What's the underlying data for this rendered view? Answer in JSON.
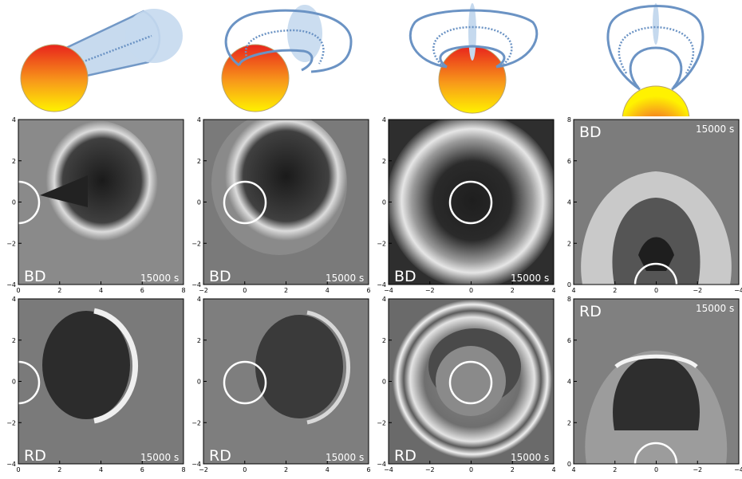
{
  "figure": {
    "rows": [
      {
        "label": "BD",
        "time": "15000 s"
      },
      {
        "label": "RD",
        "time": "15000 s"
      }
    ],
    "columns": [
      {
        "xticks": [
          "0",
          "2",
          "4",
          "6",
          "8"
        ],
        "yticks": [
          "−4",
          "−2",
          "0",
          "2",
          "4"
        ]
      },
      {
        "xticks": [
          "−2",
          "0",
          "2",
          "4",
          "6"
        ],
        "yticks": [
          "−4",
          "−2",
          "0",
          "2",
          "4"
        ]
      },
      {
        "xticks": [
          "−4",
          "−2",
          "0",
          "2",
          "4"
        ],
        "yticks": [
          "−4",
          "−2",
          "0",
          "2",
          "4"
        ]
      },
      {
        "xticks": [
          "4",
          "2",
          "0",
          "−2",
          "−4"
        ],
        "yticks": [
          "0",
          "2",
          "4",
          "6",
          "8"
        ]
      }
    ]
  },
  "colors": {
    "sun_top": "#e8241c",
    "sun_bottom": "#fff200",
    "fluxrope": "#6b93c4",
    "cone_fill": "#c5d9ee"
  }
}
